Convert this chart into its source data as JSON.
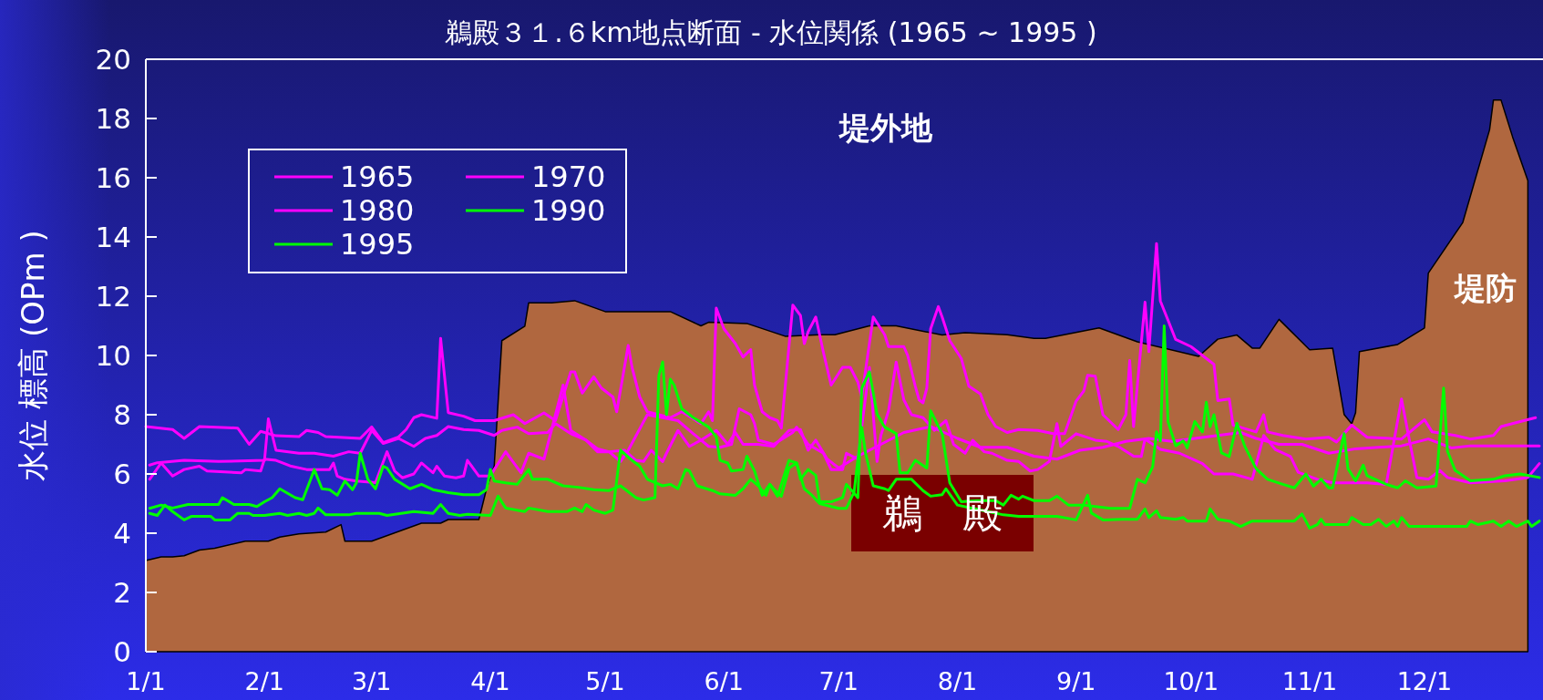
{
  "chart_data": {
    "type": "line",
    "title": "鵜殿３１.６km地点断面 - 水位関係 (1965 ~ 1995 )",
    "ylabel": "水位 標高 (OPm )",
    "xlim": [
      "--01-01",
      "--12-31"
    ],
    "xticks": [
      {
        "value": "--01-01",
        "label": "1/1"
      },
      {
        "value": "--02-01",
        "label": "2/1"
      },
      {
        "value": "--03-01",
        "label": "3/1"
      },
      {
        "value": "--04-01",
        "label": "4/1"
      },
      {
        "value": "--05-01",
        "label": "5/1"
      },
      {
        "value": "--06-01",
        "label": "6/1"
      },
      {
        "value": "--07-01",
        "label": "7/1"
      },
      {
        "value": "--08-01",
        "label": "8/1"
      },
      {
        "value": "--09-01",
        "label": "9/1"
      },
      {
        "value": "--10-01",
        "label": "10/1"
      },
      {
        "value": "--11-01",
        "label": "11/1"
      },
      {
        "value": "--12-01",
        "label": "12/1"
      }
    ],
    "ylim": [
      0,
      20
    ],
    "yticks": [
      0,
      2,
      4,
      6,
      8,
      10,
      12,
      14,
      16,
      18,
      20
    ],
    "legend": "top left",
    "annotations": [
      "堤外地",
      "堤防",
      "鵜　殿"
    ],
    "series": [
      {
        "type": "area",
        "color": "#b0673f",
        "x": [
          "--01-01",
          "--01-05",
          "--01-08",
          "--01-11",
          "--01-15",
          "--01-19",
          "--01-27",
          "--02-02",
          "--02-05",
          "--02-10",
          "--02-17",
          "--02-21",
          "--02-22",
          "--03-01",
          "--03-14",
          "--03-19",
          "--03-21",
          "--03-29",
          "--03-31",
          "--04-02",
          "--04-04",
          "--04-10",
          "--04-11",
          "--04-17",
          "--04-23",
          "--05-01",
          "--05-18",
          "--05-26",
          "--05-28",
          "--06-07",
          "--06-17",
          "--06-26",
          "--06-30",
          "--07-09",
          "--07-16",
          "--07-28",
          "--08-03",
          "--08-14",
          "--08-21",
          "--08-24",
          "--09-07",
          "--09-17",
          "--10-03",
          "--10-08",
          "--10-13",
          "--10-17",
          "--10-19",
          "--10-24",
          "--11-01",
          "--11-07",
          "--11-10",
          "--11-12",
          "--11-13",
          "--11-14",
          "--11-24",
          "--12-01",
          "--12-02",
          "--12-11",
          "--12-18",
          "--12-19",
          "--12-21",
          "--12-24",
          "--12-28"
        ],
        "values": [
          3.08,
          3.2,
          3.2,
          3.24,
          3.43,
          3.49,
          3.73,
          3.73,
          3.87,
          3.98,
          4.04,
          4.29,
          3.73,
          3.73,
          4.34,
          4.34,
          4.46,
          4.46,
          5.5,
          6.27,
          10.5,
          10.99,
          11.78,
          11.78,
          11.85,
          11.48,
          11.48,
          11.0,
          11.12,
          11.08,
          10.65,
          10.7,
          10.7,
          11.0,
          11.0,
          10.69,
          10.77,
          10.7,
          10.58,
          10.58,
          10.93,
          10.46,
          9.97,
          10.55,
          10.69,
          10.25,
          10.25,
          11.22,
          10.19,
          10.25,
          8.01,
          7.69,
          8.07,
          10.13,
          10.37,
          10.93,
          12.78,
          14.49,
          17.62,
          18.62,
          18.62,
          17.38,
          15.9
        ]
      },
      {
        "name": "1965",
        "color": "#ff00ff",
        "x": [
          "--01-01",
          "--01-08",
          "--01-11",
          "--01-15",
          "--01-25",
          "--01-28",
          "--01-31",
          "--02-04",
          "--02-10",
          "--02-12",
          "--02-15",
          "--02-17",
          "--02-26",
          "--03-01",
          "--03-04",
          "--03-08",
          "--03-10",
          "--03-12",
          "--03-14",
          "--03-18",
          "--03-19",
          "--03-21",
          "--03-25",
          "--03-28",
          "--04-02",
          "--04-07",
          "--04-10",
          "--04-15",
          "--04-18",
          "--04-22",
          "--04-23",
          "--04-25",
          "--04-28",
          "--04-30",
          "--05-03",
          "--05-04",
          "--05-07",
          "--05-08",
          "--05-10",
          "--05-12",
          "--05-15",
          "--05-18",
          "--05-21",
          "--05-26",
          "--05-28",
          "--05-29",
          "--05-30",
          "--06-01",
          "--06-04",
          "--06-06",
          "--06-08",
          "--06-09",
          "--06-11",
          "--06-13",
          "--06-15",
          "--06-16",
          "--06-19",
          "--06-21",
          "--06-22",
          "--06-23",
          "--06-25",
          "--06-27",
          "--06-29",
          "--07-02",
          "--07-04",
          "--07-06",
          "--07-07",
          "--07-10",
          "--07-13",
          "--07-14",
          "--07-18",
          "--07-19",
          "--07-21",
          "--07-22",
          "--07-23",
          "--07-24",
          "--07-25",
          "--07-27",
          "--07-28",
          "--07-30",
          "--08-01",
          "--08-02",
          "--08-04",
          "--08-07",
          "--08-09",
          "--08-11",
          "--08-14",
          "--08-17",
          "--08-22",
          "--08-26",
          "--08-29",
          "--09-01",
          "--09-03",
          "--09-04",
          "--09-06",
          "--09-08",
          "--09-12",
          "--09-14",
          "--09-15",
          "--09-16",
          "--09-19",
          "--09-20",
          "--09-22",
          "--09-23",
          "--09-25",
          "--09-27",
          "--10-01",
          "--10-04",
          "--10-07",
          "--10-08",
          "--10-11",
          "--10-12",
          "--10-18",
          "--10-20",
          "--10-21",
          "--10-25",
          "--10-31",
          "--11-06",
          "--11-08",
          "--11-12",
          "--11-16",
          "--11-25",
          "--12-01",
          "--12-03",
          "--12-09",
          "--12-13",
          "--12-19",
          "--12-21",
          "--12-26",
          "--12-30"
        ],
        "values": [
          7.6,
          7.5,
          7.2,
          7.6,
          7.55,
          7.0,
          7.44,
          7.29,
          7.26,
          7.47,
          7.4,
          7.26,
          7.2,
          7.59,
          7.06,
          7.25,
          7.5,
          7.9,
          8.0,
          7.88,
          10.58,
          8.07,
          7.95,
          7.8,
          7.8,
          8.0,
          7.7,
          8.06,
          7.8,
          9.45,
          9.45,
          8.73,
          9.28,
          8.9,
          8.6,
          8.1,
          10.34,
          9.6,
          8.6,
          8.1,
          8.0,
          7.9,
          8.1,
          7.7,
          8.1,
          7.8,
          11.6,
          10.9,
          10.4,
          9.95,
          10.2,
          9.0,
          8.1,
          7.9,
          7.8,
          7.55,
          11.7,
          11.35,
          10.4,
          10.8,
          11.3,
          10.1,
          9.0,
          9.6,
          9.6,
          9.1,
          8.6,
          11.3,
          10.7,
          10.3,
          10.3,
          10.0,
          8.96,
          8.5,
          8.4,
          8.9,
          10.9,
          11.65,
          11.3,
          10.5,
          10.1,
          9.9,
          8.96,
          8.7,
          8.0,
          7.6,
          7.4,
          7.5,
          7.47,
          7.36,
          7.36,
          8.46,
          8.8,
          9.33,
          9.3,
          8.0,
          7.5,
          8.0,
          9.83,
          7.6,
          11.8,
          10.13,
          13.78,
          11.84,
          11.19,
          10.54,
          10.3,
          10.0,
          9.7,
          8.48,
          8.53,
          7.65,
          7.42,
          8.0,
          7.42,
          7.3,
          7.18,
          7.24,
          7.08,
          7.65,
          7.24,
          7.18,
          7.83,
          7.42,
          7.3,
          7.18,
          7.3,
          7.6,
          7.77,
          7.9
        ]
      },
      {
        "name": "1970",
        "color": "#ff00ff",
        "x": [
          "--01-02",
          "--01-04",
          "--01-11",
          "--01-20",
          "--02-01",
          "--02-02",
          "--02-04",
          "--02-10",
          "--02-14",
          "--02-19",
          "--02-23",
          "--02-26",
          "--03-01",
          "--03-04",
          "--03-08",
          "--03-12",
          "--03-15",
          "--03-18",
          "--03-21",
          "--03-25",
          "--03-29",
          "--04-02",
          "--04-04",
          "--04-08",
          "--04-11",
          "--04-16",
          "--04-18",
          "--04-22",
          "--04-26",
          "--04-29",
          "--05-02",
          "--05-05",
          "--05-07",
          "--05-12",
          "--05-20",
          "--05-24",
          "--05-28",
          "--05-31",
          "--06-03",
          "--06-05",
          "--06-08",
          "--06-09",
          "--06-10",
          "--06-14",
          "--06-19",
          "--06-20",
          "--06-23",
          "--06-27",
          "--06-29",
          "--07-02",
          "--07-03",
          "--07-06",
          "--07-07",
          "--07-09",
          "--07-11",
          "--07-12",
          "--07-14",
          "--07-16",
          "--07-18",
          "--07-20",
          "--07-23",
          "--07-26",
          "--07-29",
          "--07-31",
          "--08-03",
          "--08-05",
          "--08-08",
          "--08-10",
          "--08-14",
          "--08-17",
          "--08-20",
          "--08-22",
          "--08-25",
          "--08-27",
          "--08-28",
          "--09-01",
          "--09-06",
          "--09-09",
          "--09-12",
          "--09-16",
          "--09-18",
          "--09-19",
          "--09-23",
          "--09-28",
          "--10-04",
          "--10-07",
          "--10-12",
          "--10-17",
          "--10-20",
          "--10-23",
          "--10-27",
          "--10-29",
          "--11-03",
          "--11-07",
          "--11-16",
          "--11-21",
          "--11-25",
          "--11-27",
          "--11-29",
          "--12-02",
          "--12-05",
          "--12-07",
          "--12-13",
          "--12-22",
          "--12-28",
          "--12-31"
        ],
        "values": [
          6.3,
          6.38,
          6.46,
          6.42,
          6.46,
          7.86,
          6.8,
          6.7,
          6.7,
          6.6,
          6.75,
          6.7,
          7.47,
          7.03,
          7.2,
          6.93,
          7.2,
          7.3,
          7.6,
          7.5,
          7.47,
          7.3,
          7.47,
          7.58,
          7.36,
          7.4,
          7.7,
          7.36,
          7.14,
          6.75,
          6.75,
          6.42,
          6.8,
          8.0,
          7.8,
          7.36,
          6.93,
          6.9,
          7.0,
          8.2,
          8.0,
          7.7,
          7.14,
          7.0,
          7.4,
          7.58,
          7.0,
          6.7,
          6.15,
          6.15,
          6.7,
          6.5,
          7.58,
          9.6,
          6.42,
          7.3,
          8.13,
          9.78,
          8.5,
          8.0,
          7.9,
          7.47,
          7.8,
          7.0,
          6.7,
          7.14,
          6.75,
          6.7,
          6.46,
          6.42,
          6.1,
          6.15,
          6.42,
          7.7,
          6.93,
          7.36,
          7.14,
          7.1,
          6.93,
          6.6,
          6.59,
          7.18,
          6.83,
          6.7,
          6.35,
          6.0,
          6.0,
          5.82,
          7.3,
          6.83,
          6.59,
          6.06,
          5.82,
          5.7,
          5.7,
          5.65,
          8.53,
          7.18,
          5.88,
          5.82,
          6.12,
          5.88,
          5.7,
          5.77,
          5.88,
          6.35
        ]
      },
      {
        "name": "1980",
        "color": "#ff00ff",
        "x": [
          "--01-02",
          "--01-05",
          "--01-08",
          "--01-11",
          "--01-15",
          "--01-17",
          "--01-26",
          "--01-27",
          "--01-31",
          "--02-01",
          "--02-04",
          "--02-08",
          "--02-12",
          "--02-18",
          "--02-19",
          "--02-20",
          "--02-22",
          "--02-25",
          "--03-02",
          "--03-05",
          "--03-07",
          "--03-09",
          "--03-12",
          "--03-14",
          "--03-17",
          "--03-18",
          "--03-20",
          "--03-23",
          "--03-25",
          "--03-26",
          "--03-29",
          "--04-01",
          "--04-02",
          "--04-05",
          "--04-09",
          "--04-11",
          "--04-15",
          "--04-18",
          "--04-20",
          "--04-22",
          "--04-26",
          "--04-29",
          "--05-02",
          "--05-06",
          "--05-09",
          "--05-11",
          "--05-13",
          "--05-16",
          "--05-17",
          "--05-20",
          "--05-23",
          "--05-26",
          "--05-30",
          "--06-02",
          "--06-04",
          "--06-06",
          "--06-10",
          "--06-14",
          "--06-18",
          "--06-21",
          "--06-23",
          "--06-25",
          "--06-28",
          "--07-01",
          "--07-06",
          "--07-12",
          "--07-18",
          "--07-25",
          "--08-01",
          "--08-07",
          "--08-14",
          "--08-21",
          "--08-27",
          "--09-02",
          "--09-08",
          "--09-14",
          "--09-20",
          "--09-26",
          "--10-02",
          "--10-08",
          "--10-14",
          "--10-18",
          "--10-24",
          "--10-30",
          "--11-06",
          "--11-13",
          "--11-19",
          "--11-25",
          "--12-02",
          "--12-08",
          "--12-13",
          "--12-20",
          "--12-31"
        ],
        "values": [
          5.82,
          6.37,
          5.93,
          6.15,
          6.26,
          6.1,
          6.04,
          6.15,
          6.1,
          6.5,
          6.46,
          6.26,
          6.15,
          6.15,
          6.37,
          5.93,
          5.82,
          5.76,
          5.71,
          6.75,
          6.1,
          5.87,
          6.0,
          6.37,
          6.04,
          6.26,
          5.93,
          5.87,
          5.93,
          6.46,
          5.93,
          5.93,
          6.15,
          6.75,
          6.04,
          6.7,
          6.5,
          8.0,
          9.0,
          7.47,
          7.14,
          6.85,
          6.75,
          6.8,
          6.46,
          6.42,
          6.8,
          6.42,
          6.7,
          7.47,
          6.93,
          7.14,
          7.47,
          7.0,
          7.4,
          7.0,
          7.0,
          6.93,
          7.47,
          7.5,
          6.8,
          7.14,
          6.5,
          6.2,
          6.6,
          7.0,
          7.4,
          7.6,
          7.2,
          6.9,
          6.9,
          6.6,
          6.5,
          6.8,
          6.9,
          7.1,
          7.2,
          7.1,
          7.2,
          7.3,
          7.4,
          7.2,
          7.0,
          7.0,
          6.7,
          6.85,
          6.9,
          6.95,
          7.18,
          6.88,
          6.95,
          6.95,
          6.95
        ]
      },
      {
        "name": "1990",
        "color": "#00ff00",
        "x": [
          "--01-02",
          "--01-05",
          "--01-08",
          "--01-12",
          "--01-20",
          "--01-21",
          "--01-24",
          "--01-28",
          "--01-30",
          "--02-01",
          "--02-03",
          "--02-05",
          "--02-09",
          "--02-11",
          "--02-13",
          "--02-14",
          "--02-16",
          "--02-18",
          "--02-20",
          "--02-22",
          "--02-24",
          "--02-25",
          "--02-26",
          "--02-28",
          "--03-02",
          "--03-04",
          "--03-05",
          "--03-07",
          "--03-11",
          "--03-14",
          "--03-17",
          "--03-21",
          "--03-25",
          "--03-29",
          "--03-31",
          "--04-01",
          "--04-02",
          "--04-05",
          "--04-08",
          "--04-11",
          "--04-12",
          "--04-16",
          "--04-20",
          "--04-24",
          "--04-28",
          "--05-02",
          "--05-05",
          "--05-09",
          "--05-11",
          "--05-14",
          "--05-15",
          "--05-16",
          "--05-17",
          "--05-18",
          "--05-19",
          "--05-21",
          "--05-24",
          "--05-28",
          "--05-30",
          "--05-31",
          "--06-02",
          "--06-03",
          "--06-06",
          "--06-07",
          "--06-09",
          "--06-11",
          "--06-13",
          "--06-15",
          "--06-18",
          "--06-20",
          "--06-21",
          "--06-23",
          "--06-25",
          "--06-26",
          "--06-29",
          "--07-02",
          "--07-03",
          "--07-06",
          "--07-07",
          "--07-09",
          "--07-11",
          "--07-13",
          "--07-16",
          "--07-17",
          "--07-19",
          "--07-21",
          "--07-24",
          "--07-25",
          "--07-28",
          "--07-30",
          "--08-02",
          "--08-06",
          "--08-11",
          "--08-13",
          "--08-15",
          "--08-17",
          "--08-18",
          "--08-21",
          "--08-25",
          "--08-27",
          "--08-30",
          "--09-03",
          "--09-06",
          "--09-10",
          "--09-15",
          "--09-17",
          "--09-19",
          "--09-21",
          "--09-22",
          "--09-23",
          "--09-24",
          "--09-25",
          "--09-27",
          "--09-29",
          "--09-30",
          "--10-02",
          "--10-04",
          "--10-05",
          "--10-06",
          "--10-07",
          "--10-09",
          "--10-11",
          "--10-13",
          "--10-15",
          "--10-18",
          "--10-21",
          "--10-25",
          "--10-28",
          "--10-31",
          "--11-02",
          "--11-04",
          "--11-06",
          "--11-07",
          "--11-10",
          "--11-11",
          "--11-13",
          "--11-15",
          "--11-16",
          "--11-21",
          "--11-24",
          "--11-26",
          "--11-29",
          "--12-04",
          "--12-06",
          "--12-07",
          "--12-09",
          "--12-13",
          "--12-19",
          "--12-22",
          "--12-26",
          "--12-31"
        ],
        "values": [
          4.84,
          4.95,
          4.85,
          4.97,
          4.97,
          5.2,
          4.97,
          4.97,
          4.9,
          5.06,
          5.2,
          5.5,
          5.2,
          5.13,
          5.8,
          6.15,
          5.5,
          5.47,
          5.28,
          5.76,
          5.47,
          5.7,
          6.7,
          5.82,
          5.5,
          6.26,
          6.2,
          5.82,
          5.5,
          5.65,
          5.47,
          5.37,
          5.3,
          5.3,
          5.47,
          6.15,
          5.76,
          5.7,
          5.65,
          6.15,
          5.82,
          5.82,
          5.6,
          5.55,
          5.47,
          5.44,
          5.6,
          5.2,
          5.12,
          5.2,
          9.32,
          9.78,
          8.0,
          9.2,
          9.0,
          8.2,
          7.9,
          7.58,
          7.25,
          6.46,
          6.37,
          6.1,
          6.15,
          6.6,
          6.1,
          5.28,
          5.65,
          5.25,
          6.46,
          6.37,
          5.82,
          6.15,
          5.95,
          5.06,
          5.06,
          5.2,
          5.65,
          5.2,
          8.9,
          9.45,
          8.02,
          7.58,
          7.36,
          6.04,
          6.04,
          6.46,
          6.2,
          8.13,
          7.36,
          5.7,
          5.06,
          5.1,
          5.1,
          4.95,
          5.28,
          5.15,
          5.25,
          5.1,
          5.1,
          5.25,
          4.95,
          4.95,
          4.9,
          4.84,
          4.84,
          5.82,
          5.7,
          6.24,
          7.42,
          7.12,
          11.0,
          7.77,
          6.95,
          7.12,
          6.88,
          7.77,
          7.42,
          8.42,
          7.6,
          8.0,
          6.71,
          6.59,
          7.71,
          6.95,
          6.18,
          5.82,
          5.65,
          5.53,
          6.0,
          5.59,
          5.82,
          5.53,
          5.53,
          7.36,
          6.18,
          5.77,
          6.3,
          5.94,
          5.65,
          5.53,
          5.77,
          5.53,
          5.59,
          8.9,
          6.77,
          6.12,
          5.77,
          5.82,
          5.94,
          6.0,
          5.88
        ]
      },
      {
        "name": "1995",
        "color": "#00ff00",
        "x": [
          "--01-02",
          "--01-04",
          "--01-06",
          "--01-08",
          "--01-11",
          "--01-13",
          "--01-18",
          "--01-19",
          "--01-23",
          "--01-25",
          "--01-28",
          "--01-29",
          "--02-01",
          "--02-05",
          "--02-07",
          "--02-10",
          "--02-12",
          "--02-14",
          "--02-15",
          "--02-17",
          "--02-23",
          "--02-25",
          "--03-03",
          "--03-05",
          "--03-12",
          "--03-17",
          "--03-19",
          "--03-21",
          "--03-24",
          "--03-26",
          "--04-01",
          "--04-03",
          "--04-05",
          "--04-08",
          "--04-10",
          "--04-11",
          "--04-16",
          "--04-21",
          "--04-23",
          "--04-25",
          "--04-26",
          "--04-28",
          "--05-01",
          "--05-03",
          "--05-05",
          "--05-08",
          "--05-10",
          "--05-12",
          "--05-16",
          "--05-18",
          "--05-20",
          "--05-22",
          "--05-23",
          "--05-25",
          "--05-29",
          "--05-31",
          "--06-04",
          "--06-06",
          "--06-08",
          "--06-10",
          "--06-12",
          "--06-13",
          "--06-14",
          "--06-16",
          "--06-18",
          "--06-20",
          "--06-22",
          "--06-24",
          "--06-26",
          "--07-01",
          "--07-03",
          "--07-05",
          "--07-07",
          "--07-08",
          "--07-10",
          "--07-13",
          "--07-14",
          "--07-16",
          "--07-20",
          "--07-23",
          "--07-25",
          "--07-28",
          "--07-29",
          "--08-01",
          "--08-05",
          "--08-09",
          "--08-13",
          "--08-17",
          "--08-27",
          "--09-01",
          "--09-04",
          "--09-05",
          "--09-08",
          "--09-13",
          "--09-17",
          "--09-18",
          "--09-19",
          "--09-20",
          "--09-22",
          "--09-23",
          "--09-27",
          "--09-29",
          "--09-30",
          "--10-05",
          "--10-06",
          "--10-08",
          "--10-11",
          "--10-14",
          "--10-17",
          "--10-28",
          "--10-30",
          "--11-01",
          "--11-03",
          "--11-04",
          "--11-05",
          "--11-11",
          "--11-12",
          "--11-15",
          "--11-17",
          "--11-19",
          "--11-21",
          "--11-23",
          "--11-24",
          "--11-25",
          "--11-27",
          "--12-12",
          "--12-13",
          "--12-15",
          "--12-19",
          "--12-21",
          "--12-23",
          "--12-25",
          "--12-28",
          "--12-29",
          "--12-31"
        ],
        "values": [
          4.67,
          4.6,
          4.95,
          4.73,
          4.45,
          4.57,
          4.57,
          4.45,
          4.45,
          4.67,
          4.67,
          4.6,
          4.6,
          4.67,
          4.6,
          4.67,
          4.6,
          4.67,
          4.85,
          4.62,
          4.62,
          4.67,
          4.67,
          4.6,
          4.73,
          4.67,
          4.97,
          4.67,
          4.6,
          4.64,
          4.6,
          5.25,
          4.85,
          4.78,
          4.73,
          4.85,
          4.73,
          4.73,
          4.85,
          4.73,
          4.97,
          4.78,
          4.67,
          4.78,
          6.8,
          6.46,
          6.26,
          5.82,
          5.6,
          5.65,
          5.5,
          6.15,
          6.1,
          5.6,
          5.44,
          5.33,
          5.28,
          5.5,
          5.82,
          5.6,
          5.28,
          5.65,
          5.5,
          5.25,
          6.2,
          6.37,
          5.5,
          5.28,
          5.0,
          4.84,
          4.84,
          5.39,
          7.58,
          6.7,
          5.6,
          5.5,
          5.44,
          5.82,
          5.82,
          5.44,
          5.25,
          5.3,
          5.5,
          4.95,
          4.84,
          4.73,
          4.62,
          4.57,
          4.57,
          4.45,
          5.28,
          4.68,
          4.45,
          4.47,
          4.47,
          4.65,
          4.82,
          4.53,
          4.76,
          4.53,
          4.47,
          4.53,
          4.41,
          4.41,
          4.82,
          4.47,
          4.41,
          4.23,
          4.41,
          4.41,
          4.65,
          4.17,
          4.29,
          4.47,
          4.29,
          4.29,
          4.53,
          4.29,
          4.29,
          4.47,
          4.23,
          4.41,
          4.23,
          4.53,
          4.23,
          4.23,
          4.41,
          4.29,
          4.41,
          4.23,
          4.41,
          4.23,
          4.41,
          4.23,
          4.41
        ]
      }
    ]
  }
}
